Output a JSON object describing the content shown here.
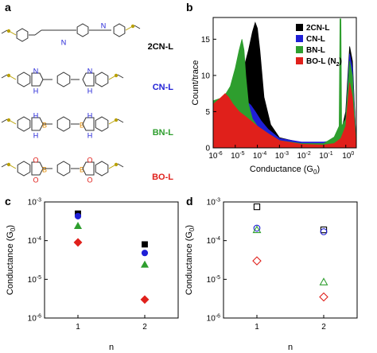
{
  "panels": {
    "a": {
      "label": "a",
      "molecules": [
        {
          "name": "2CN-L",
          "color": "#000000"
        },
        {
          "name": "CN-L",
          "color": "#1f1fd6"
        },
        {
          "name": "BN-L",
          "color": "#2e9e2e"
        },
        {
          "name": "BO-L",
          "color": "#e0201b"
        }
      ],
      "atom_labels": {
        "N": "N",
        "H": "H",
        "B": "B",
        "O": "O"
      }
    },
    "b": {
      "label": "b"
    },
    "c": {
      "label": "c"
    },
    "d": {
      "label": "d"
    }
  },
  "colors": {
    "black": "#000000",
    "blue": "#1f1fd6",
    "green": "#2e9e2e",
    "red": "#e0201b",
    "sulfur": "#b9a000",
    "nitrogen": "#1f1fd6",
    "boron": "#e08a00",
    "oxygen": "#e0201b"
  },
  "chart_data": [
    {
      "panel": "b",
      "type": "area",
      "ylabel": "Count/trace",
      "xlabel": "Conductance (G",
      "xlabel_sub": "0",
      "xlabel_close": ")",
      "xscale": "log",
      "xlim": [
        1e-06,
        3
      ],
      "ylim": [
        0,
        18
      ],
      "yticks": [
        0,
        5,
        10,
        15
      ],
      "xticks": [
        {
          "v": 1e-06,
          "base": "10",
          "exp": "-6"
        },
        {
          "v": 1e-05,
          "base": "10",
          "exp": "-5"
        },
        {
          "v": 0.0001,
          "base": "10",
          "exp": "-4"
        },
        {
          "v": 0.001,
          "base": "10",
          "exp": "-3"
        },
        {
          "v": 0.01,
          "base": "10",
          "exp": "-2"
        },
        {
          "v": 0.1,
          "base": "10",
          "exp": "-1"
        },
        {
          "v": 1,
          "base": "10",
          "exp": "0"
        }
      ],
      "legend_position": "top-right",
      "series": [
        {
          "name": "2CN-L",
          "color": "#000000",
          "x": [
            1e-06,
            3e-06,
            1e-05,
            2e-05,
            4e-05,
            6e-05,
            8e-05,
            0.0001,
            0.00013,
            0.0002,
            0.0004,
            0.001,
            0.01,
            0.1,
            0.3,
            0.6,
            1,
            1.5,
            2,
            3
          ],
          "y": [
            6,
            6.5,
            7.8,
            10,
            13.5,
            16,
            17.3,
            16.5,
            13.5,
            7,
            3.2,
            1.4,
            0.7,
            0.7,
            1,
            2,
            5,
            14,
            12,
            0
          ]
        },
        {
          "name": "CN-L",
          "color": "#1f1fd6",
          "x": [
            1e-06,
            3e-06,
            8e-06,
            1.5e-05,
            2.5e-05,
            3.5e-05,
            5e-05,
            8e-05,
            0.00015,
            0.0003,
            0.001,
            0.01,
            0.1,
            0.3,
            0.6,
            1,
            1.5,
            2,
            3
          ],
          "y": [
            6,
            6.4,
            5.9,
            5.4,
            5.8,
            6.3,
            5.9,
            5,
            3.7,
            2.6,
            1.3,
            0.8,
            0.8,
            1,
            2,
            4,
            13,
            11,
            0
          ]
        },
        {
          "name": "BN-L",
          "color": "#2e9e2e",
          "x": [
            1e-06,
            3e-06,
            6e-06,
            1e-05,
            1.5e-05,
            2e-05,
            2.5e-05,
            3e-05,
            4e-05,
            6e-05,
            0.0001,
            0.0003,
            0.001,
            0.01,
            0.1,
            0.3,
            0.5,
            0.55,
            0.6,
            0.65,
            1,
            1.5,
            2,
            3
          ],
          "y": [
            6.5,
            7,
            8.5,
            11,
            13.5,
            15,
            13.5,
            10,
            6,
            4,
            3,
            2,
            1,
            0.6,
            0.6,
            1.5,
            3,
            17.8,
            17.8,
            3,
            4,
            12,
            10,
            0
          ]
        },
        {
          "name": "BO-L (N",
          "name_sub": "2",
          "name_close": ")",
          "color": "#e0201b",
          "x": [
            1e-06,
            2e-06,
            3.5e-06,
            5e-06,
            8e-06,
            1.5e-05,
            3e-05,
            0.0001,
            0.0003,
            0.001,
            0.01,
            0.1,
            0.3,
            0.6,
            1,
            1.5,
            2,
            3
          ],
          "y": [
            6,
            6.8,
            7.5,
            7,
            6,
            5,
            4.3,
            3,
            2,
            1,
            0.5,
            0.4,
            0.6,
            1.3,
            3,
            9,
            7,
            0
          ]
        }
      ]
    },
    {
      "panel": "c",
      "type": "scatter",
      "ylabel": "Conductance (G",
      "ylabel_sub": "0",
      "ylabel_close": ")",
      "xlabel": "n",
      "yscale": "log",
      "ylim": [
        1e-06,
        0.001
      ],
      "xlim": [
        0.5,
        2.5
      ],
      "xticks": [
        1,
        2
      ],
      "yticks": [
        {
          "v": 1e-06,
          "base": "10",
          "exp": "-6"
        },
        {
          "v": 1e-05,
          "base": "10",
          "exp": "-5"
        },
        {
          "v": 0.0001,
          "base": "10",
          "exp": "-4"
        },
        {
          "v": 0.001,
          "base": "10",
          "exp": "-3"
        }
      ],
      "marker_fill": "filled",
      "series": [
        {
          "color": "#000000",
          "marker": "square",
          "x": [
            1,
            2
          ],
          "y": [
            0.0005,
            8e-05
          ]
        },
        {
          "color": "#1f1fd6",
          "marker": "circle",
          "x": [
            1,
            2
          ],
          "y": [
            0.00043,
            4.8e-05
          ]
        },
        {
          "color": "#2e9e2e",
          "marker": "triangle",
          "x": [
            1,
            2
          ],
          "y": [
            0.00024,
            2.4e-05
          ]
        },
        {
          "color": "#e0201b",
          "marker": "diamond",
          "x": [
            1,
            2
          ],
          "y": [
            9e-05,
            3e-06
          ]
        }
      ]
    },
    {
      "panel": "d",
      "type": "scatter",
      "ylabel": "Conductance (G",
      "ylabel_sub": "0",
      "ylabel_close": ")",
      "xlabel": "n",
      "yscale": "log",
      "ylim": [
        1e-06,
        0.001
      ],
      "xlim": [
        0.5,
        2.5
      ],
      "xticks": [
        1,
        2
      ],
      "yticks": [
        {
          "v": 1e-06,
          "base": "10",
          "exp": "-6"
        },
        {
          "v": 1e-05,
          "base": "10",
          "exp": "-5"
        },
        {
          "v": 0.0001,
          "base": "10",
          "exp": "-4"
        },
        {
          "v": 0.001,
          "base": "10",
          "exp": "-3"
        }
      ],
      "marker_fill": "open",
      "series": [
        {
          "color": "#000000",
          "marker": "square",
          "x": [
            1,
            2
          ],
          "y": [
            0.00075,
            0.00019
          ]
        },
        {
          "color": "#1f1fd6",
          "marker": "circle",
          "x": [
            1,
            2
          ],
          "y": [
            0.00021,
            0.00017
          ]
        },
        {
          "color": "#2e9e2e",
          "marker": "triangle",
          "x": [
            1,
            2
          ],
          "y": [
            0.00019,
            8.5e-06
          ]
        },
        {
          "color": "#e0201b",
          "marker": "diamond",
          "x": [
            1,
            2
          ],
          "y": [
            3e-05,
            3.5e-06
          ]
        }
      ]
    }
  ]
}
